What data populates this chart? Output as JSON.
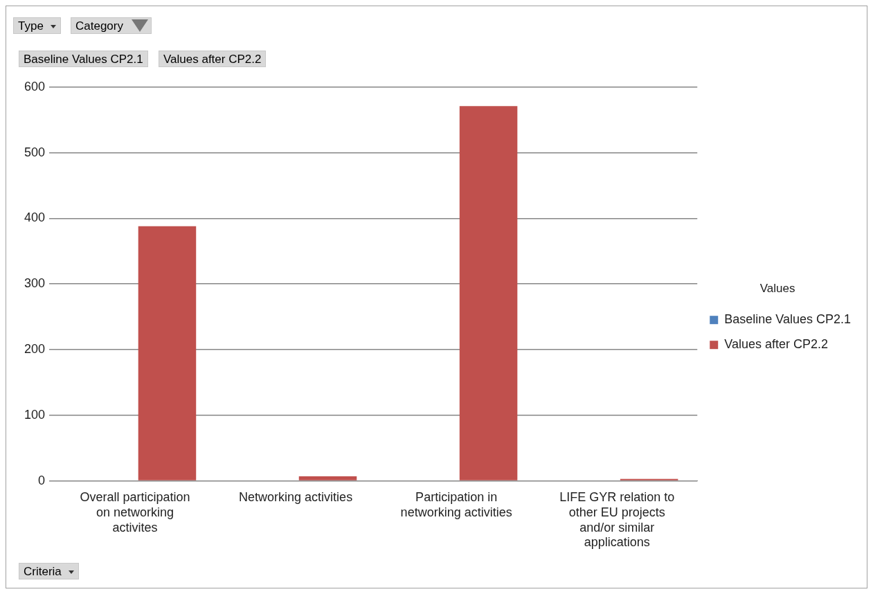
{
  "chart_data": {
    "type": "bar",
    "categories": [
      "Overall participation on networking activites",
      "Networking activities",
      "Participation in networking activities",
      "LIFE GYR relation to other EU projects and/or similar applications"
    ],
    "series": [
      {
        "name": "Baseline Values CP2.1",
        "color": "#4f81bd",
        "values": [
          0,
          0,
          0,
          0
        ]
      },
      {
        "name": "Values after CP2.2",
        "color": "#c0504d",
        "values": [
          388,
          7,
          571,
          3
        ]
      }
    ],
    "ylim": [
      0,
      600
    ],
    "yticks": [
      0,
      100,
      200,
      300,
      400,
      500,
      600
    ],
    "grid": "y",
    "legend": "right",
    "legend_title": "Values",
    "annotations": [
      "Type",
      "Category",
      "Baseline Values CP2.1",
      "Values after CP2.2",
      "Criteria"
    ]
  }
}
